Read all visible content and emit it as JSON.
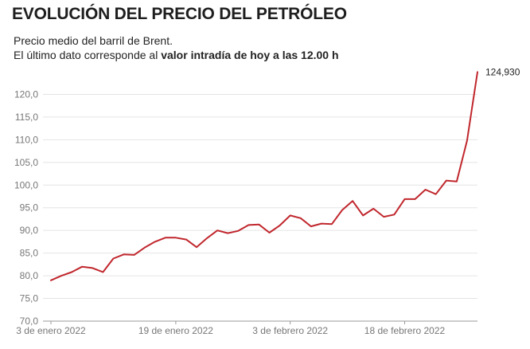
{
  "header": {
    "title": "EVOLUCIÓN DEL PRECIO DEL PETRÓLEO",
    "subtitle_line1": "Precio medio del barril de Brent.",
    "subtitle_line2_prefix": "El último dato corresponde al ",
    "subtitle_line2_bold": "valor intradía de hoy a las 12.00 h"
  },
  "colors": {
    "line": "#c0272d",
    "grid": "#e4e4e4",
    "axis": "#999999"
  },
  "chart_data": {
    "type": "line",
    "title": "EVOLUCIÓN DEL PRECIO DEL PETRÓLEO",
    "xlabel": "",
    "ylabel": "",
    "ylim": [
      70,
      125
    ],
    "yticks": [
      "70,0",
      "75,0",
      "80,0",
      "85,0",
      "90,0",
      "95,0",
      "100,0",
      "105,0",
      "110,0",
      "115,0",
      "120,0"
    ],
    "xtick_labels": [
      "3 de enero 2022",
      "19 de enero 2022",
      "3 de febrero 2022",
      "18 de febrero 2022"
    ],
    "grid": true,
    "end_label": "124,930",
    "series": [
      {
        "values": [
          79.0,
          80.0,
          80.8,
          82.0,
          81.7,
          80.8,
          83.8,
          84.7,
          84.6,
          86.2,
          87.5,
          88.4,
          88.4,
          88.0,
          86.3,
          88.3,
          90.0,
          89.4,
          89.9,
          91.2,
          91.3,
          89.5,
          91.1,
          93.3,
          92.7,
          90.9,
          91.5,
          91.4,
          94.5,
          96.5,
          93.3,
          94.8,
          93.0,
          93.5,
          96.9,
          96.9,
          99.0,
          98.0,
          101.0,
          100.8,
          109.8,
          124.93
        ]
      }
    ]
  }
}
